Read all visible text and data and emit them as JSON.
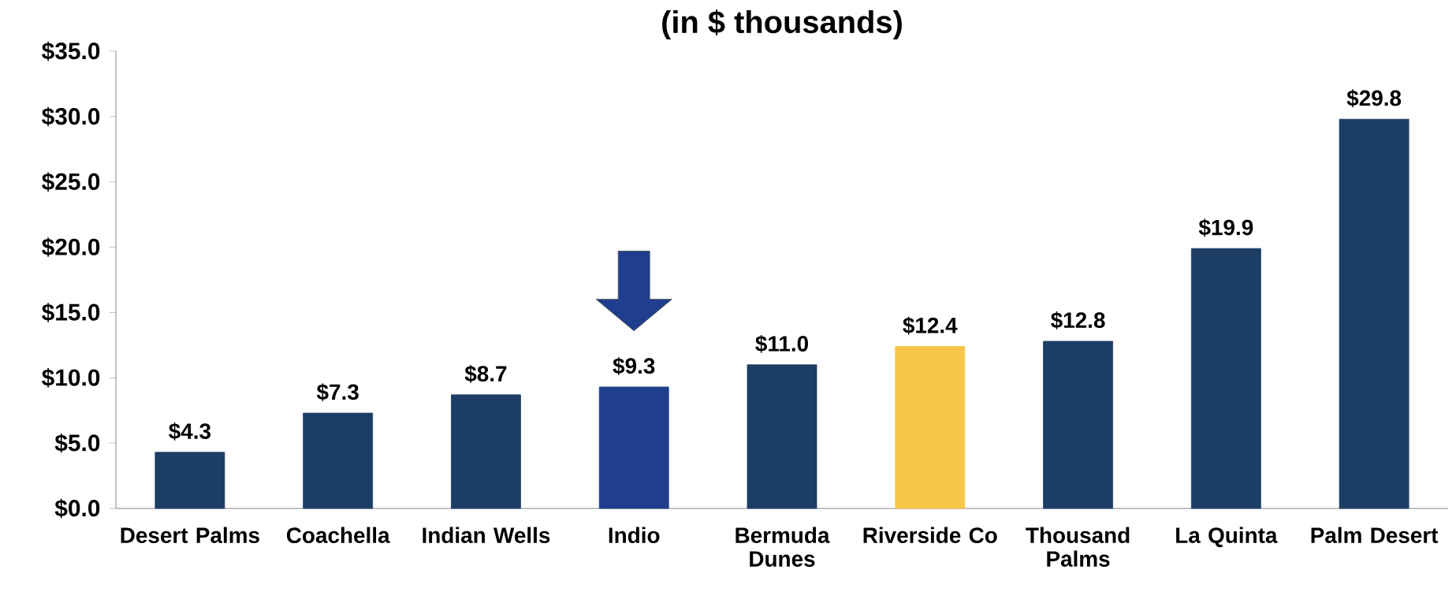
{
  "chart_data": {
    "type": "bar",
    "title": "(in $ thousands)",
    "categories": [
      "Desert Palms",
      "Coachella",
      "Indian Wells",
      "Indio",
      "Bermuda Dunes",
      "Riverside Co",
      "Thousand Palms",
      "La Quinta",
      "Palm Desert"
    ],
    "values": [
      4.3,
      7.3,
      8.7,
      9.3,
      11.0,
      12.4,
      12.8,
      19.9,
      29.8
    ],
    "value_labels": [
      "$4.3",
      "$7.3",
      "$8.7",
      "$9.3",
      "$11.0",
      "$12.4",
      "$12.8",
      "$19.9",
      "$29.8"
    ],
    "colors": [
      "#1c3d64",
      "#1c3d64",
      "#1c3d64",
      "#1f3f8e",
      "#1c3d64",
      "#f7c648",
      "#1c3d64",
      "#1c3d64",
      "#1c3d64"
    ],
    "ylim": [
      0,
      35
    ],
    "yticks": [
      {
        "value": 0,
        "label": "$0.0"
      },
      {
        "value": 5,
        "label": "$5.0"
      },
      {
        "value": 10,
        "label": "$10.0"
      },
      {
        "value": 15,
        "label": "$15.0"
      },
      {
        "value": 20,
        "label": "$20.0"
      },
      {
        "value": 25,
        "label": "$25.0"
      },
      {
        "value": 30,
        "label": "$30.0"
      },
      {
        "value": 35,
        "label": "$35.0"
      }
    ],
    "grid": false
  }
}
